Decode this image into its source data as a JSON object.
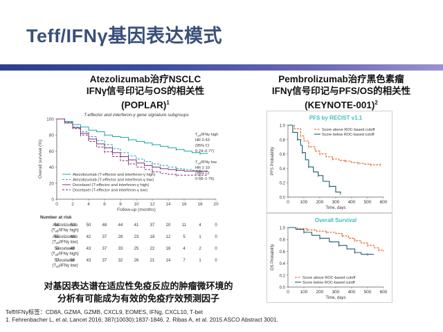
{
  "slide": {
    "title": "Teff/IFNγ基因表达模式",
    "left_heading": [
      "Atezolizumab治疗NSCLC",
      "IFNγ信号印记与OS的相关性",
      "(POPLAR)"
    ],
    "left_ref": "1",
    "right_heading": [
      "Pembrolizumab治疗黑色素瘤",
      "IFNγ信号印记与PFS/OS的相关性",
      "(KEYNOTE-001)"
    ],
    "right_ref": "2",
    "conclusion": [
      "对基因表达谱在适应性免疫反应的肿瘤微环境的",
      "分析有可能成为有效的免疫疗效预测因子"
    ],
    "footnote_1": "Teff/IFNγ标签：CD8A, GZMA, GZMB, CXCL9, EOMES, IFNg, CXCL10, T-bet",
    "footnote_2": "1. Fehrenbacher L, et al. Lancet 2016; 387(10030):1837-1846. 2. Ribas A, et al. 2015 ASCO Abstract 3001.",
    "colors": {
      "title": "#3a4f7a",
      "band_start": "#2b3f8a",
      "band_end": "#9b93cf",
      "teal": "#1aa3a3",
      "purple": "#7b2f7b",
      "orange": "#e05a1e",
      "navy": "#1b5870"
    }
  },
  "chart_data": [
    {
      "type": "line",
      "title": "T-effector and interferon-γ gene signature subgroups",
      "xlabel": "Follow-up (months)",
      "ylabel": "Overall survival (%)",
      "xlim": [
        0,
        20
      ],
      "ylim": [
        0,
        100
      ],
      "xticks": [
        0,
        2,
        4,
        6,
        8,
        10,
        12,
        14,
        16,
        18,
        20
      ],
      "yticks": [
        0,
        20,
        40,
        60,
        80,
        100
      ],
      "series": [
        {
          "name": "Atezolizumab (T-effector and interferon-γ high)",
          "color": "#1aa3a3",
          "dash": false,
          "x": [
            0,
            1,
            2,
            3,
            4,
            5,
            6,
            7,
            8,
            9,
            10,
            11,
            12,
            13,
            14,
            15,
            16,
            17,
            18,
            19
          ],
          "y": [
            100,
            97,
            93,
            90,
            86,
            84,
            80,
            78,
            77,
            74,
            72,
            70,
            68,
            66,
            64,
            62,
            60,
            58,
            57,
            57
          ]
        },
        {
          "name": "Atezolizumab (T-effector and interferon-γ low)",
          "color": "#1aa3a3",
          "dash": true,
          "x": [
            0,
            1,
            2,
            3,
            4,
            5,
            6,
            7,
            8,
            9,
            10,
            11,
            12,
            13,
            14,
            15,
            16,
            17,
            18,
            19
          ],
          "y": [
            100,
            96,
            90,
            84,
            78,
            73,
            68,
            63,
            58,
            54,
            50,
            47,
            44,
            42,
            40,
            38,
            37,
            36,
            35,
            35
          ]
        },
        {
          "name": "Docetaxel (T-effector and interferon-γ high)",
          "color": "#7b2f7b",
          "dash": false,
          "x": [
            0,
            1,
            2,
            3,
            4,
            5,
            6,
            7,
            8,
            9,
            10,
            11,
            12,
            13,
            14,
            15,
            16,
            17,
            18,
            19
          ],
          "y": [
            100,
            95,
            89,
            82,
            75,
            69,
            64,
            58,
            53,
            49,
            45,
            42,
            40,
            38,
            37,
            36,
            35,
            35,
            35,
            35
          ]
        },
        {
          "name": "Docetaxel (T-effector and interferon-γ low)",
          "color": "#7b2f7b",
          "dash": true,
          "x": [
            0,
            1,
            2,
            3,
            4,
            5,
            6,
            7,
            8,
            9,
            10,
            11,
            12,
            13,
            14,
            15,
            16,
            17,
            18,
            19
          ],
          "y": [
            100,
            95,
            88,
            80,
            72,
            65,
            59,
            53,
            48,
            44,
            40,
            37,
            34,
            32,
            31,
            30,
            30,
            30,
            30,
            30
          ]
        }
      ],
      "annotations": [
        [
          "T",
          "eff",
          "/IFNγ high"
        ],
        [
          "HR 0·43"
        ],
        [
          "(95% CI"
        ],
        [
          "0·24–0·77)"
        ],
        [
          "T",
          "eff",
          "/IFNγ low"
        ],
        [
          "HR 1·10"
        ],
        [
          "(95% CI"
        ],
        [
          "0·68–1·76)"
        ]
      ],
      "risk_table": {
        "title": "Number at risk",
        "columns": [
          0,
          2,
          4,
          6,
          8,
          10,
          12,
          14,
          16,
          18,
          20
        ],
        "rows": [
          {
            "label": [
              "Atezolizumab",
              "(T",
              "eff",
              "/IFNγ high)"
            ],
            "values": [
              "58",
              "53",
              "50",
              "48",
              "44",
              "41",
              "37",
              "20",
              "11",
              "4",
              "0"
            ]
          },
          {
            "label": [
              "Atezolizumab",
              "(T",
              "eff",
              "/IFNγ low)"
            ],
            "values": [
              "55",
              "48",
              "42",
              "37",
              "28",
              "23",
              "18",
              "12",
              "5",
              "1",
              "0"
            ]
          },
          {
            "label": [
              "Docetaxel",
              "(T",
              "eff",
              "/IFNγ high)"
            ],
            "values": [
              "54",
              "49",
              "43",
              "37",
              "33",
              "25",
              "22",
              "16",
              "4",
              "2",
              "0"
            ]
          },
          {
            "label": [
              "Docetaxel",
              "(T",
              "eff",
              "/IFNγ low)"
            ],
            "values": [
              "57",
              "50",
              "43",
              "37",
              "32",
              "26",
              "21",
              "14",
              "7",
              "1",
              "0"
            ]
          }
        ]
      }
    },
    {
      "type": "line",
      "title": "PFS by RECIST v1.1",
      "xlabel": "Time, days",
      "ylabel": "PFS Probability",
      "xlim": [
        0,
        600
      ],
      "ylim": [
        0,
        1
      ],
      "xticks": [
        0,
        100,
        200,
        300,
        400,
        500,
        600
      ],
      "yticks": [
        0.0,
        0.2,
        0.4,
        0.6,
        0.8,
        1.0
      ],
      "series": [
        {
          "name": "Score above ROC-based cutoff",
          "color": "#e05a1e",
          "dash": true,
          "x": [
            0,
            40,
            80,
            100,
            130,
            170,
            200,
            240,
            280,
            320,
            360,
            400,
            440,
            480,
            520,
            560,
            580
          ],
          "y": [
            1.0,
            0.95,
            0.85,
            0.78,
            0.7,
            0.64,
            0.6,
            0.56,
            0.53,
            0.51,
            0.5,
            0.48,
            0.47,
            0.46,
            0.45,
            0.45,
            0.45
          ]
        },
        {
          "name": "Score below ROC-based cutoff",
          "color": "#1b5870",
          "dash": false,
          "x": [
            0,
            30,
            60,
            80,
            90,
            110,
            130,
            160,
            190,
            220,
            260,
            300,
            330
          ],
          "y": [
            1.0,
            0.9,
            0.8,
            0.72,
            0.62,
            0.52,
            0.42,
            0.35,
            0.3,
            0.22,
            0.15,
            0.07,
            0.05
          ]
        }
      ]
    },
    {
      "type": "line",
      "title": "Overall Survival",
      "xlabel": "Time, days",
      "ylabel": "OS Probability",
      "xlim": [
        0,
        600
      ],
      "ylim": [
        0,
        1
      ],
      "xticks": [
        0,
        100,
        200,
        300,
        400,
        500,
        600
      ],
      "yticks": [
        0.0,
        0.2,
        0.4,
        0.6,
        0.8,
        1.0
      ],
      "series": [
        {
          "name": "Score above ROC-based cutoff",
          "color": "#e05a1e",
          "dash": true,
          "x": [
            0,
            60,
            120,
            180,
            240,
            300,
            340,
            380,
            420,
            460,
            500,
            540,
            570,
            600
          ],
          "y": [
            1.0,
            0.98,
            0.96,
            0.94,
            0.92,
            0.9,
            0.86,
            0.82,
            0.78,
            0.74,
            0.7,
            0.66,
            0.62,
            0.6
          ]
        },
        {
          "name": "Score below ROC-based cutoff",
          "color": "#1b5870",
          "dash": false,
          "x": [
            0,
            50,
            100,
            150,
            200,
            260,
            320,
            370,
            420,
            460,
            500,
            540
          ],
          "y": [
            1.0,
            0.97,
            0.92,
            0.87,
            0.82,
            0.76,
            0.7,
            0.64,
            0.58,
            0.55,
            0.55,
            0.55
          ]
        }
      ]
    }
  ]
}
